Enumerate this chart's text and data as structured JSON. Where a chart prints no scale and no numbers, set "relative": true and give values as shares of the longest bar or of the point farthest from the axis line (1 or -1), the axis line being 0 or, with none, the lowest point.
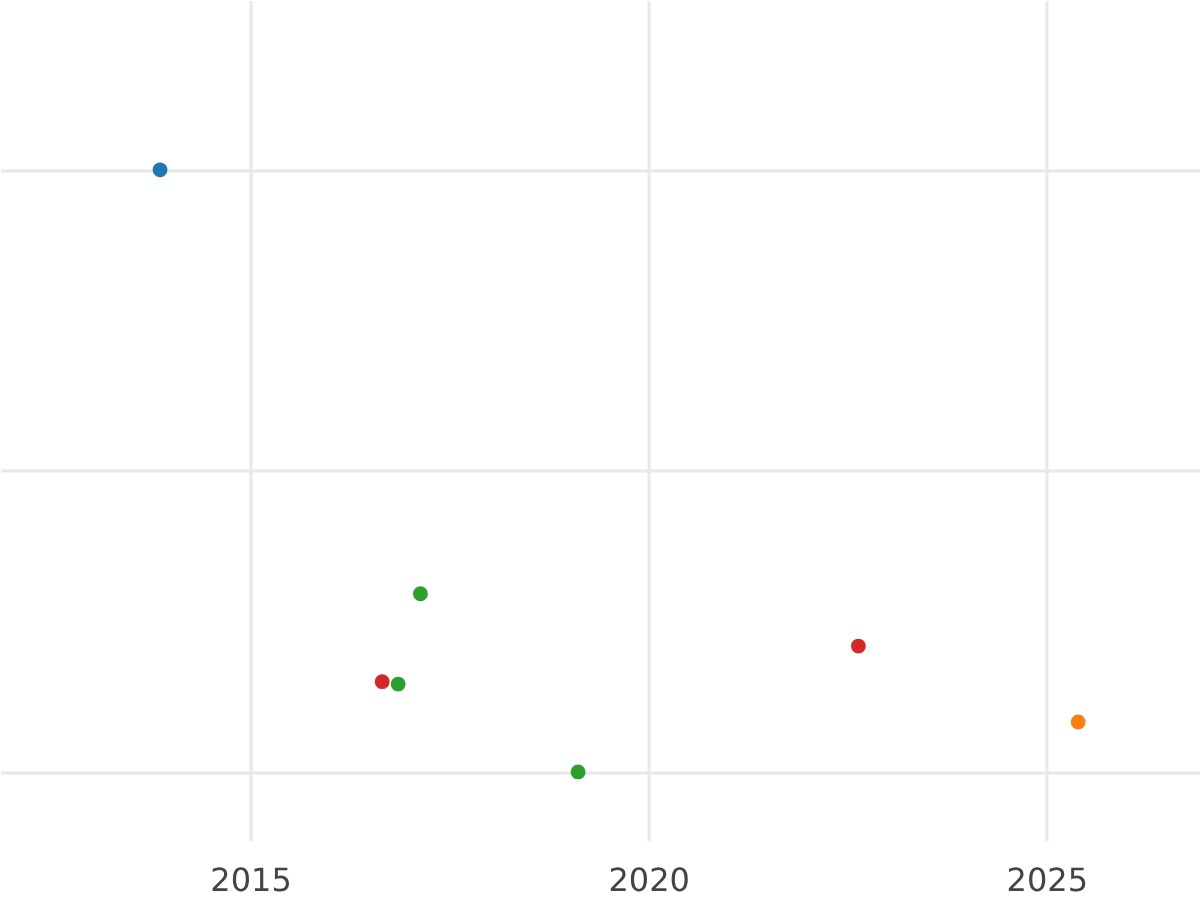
{
  "chart_data": {
    "type": "scatter",
    "relative": true,
    "xlim": [
      2011.86,
      2026.93
    ],
    "xticks": [
      2015,
      2020,
      2025
    ],
    "grid": true,
    "marker": "circle",
    "tick_labels": "x",
    "series": [
      {
        "color": "#1f77b4",
        "x": [
          2013.87
        ],
        "values": [
          1
        ]
      },
      {
        "color": "#ff7f0e",
        "x": [
          2025.4
        ],
        "values": [
          0.083
        ]
      },
      {
        "color": "#2ca02c",
        "x": [
          2017.14,
          2016.86,
          2019.12
        ],
        "values": [
          0.296,
          0.146,
          0
        ]
      },
      {
        "color": "#d62728",
        "x": [
          2016.66,
          2022.64
        ],
        "values": [
          0.15,
          0.209
        ]
      }
    ]
  }
}
